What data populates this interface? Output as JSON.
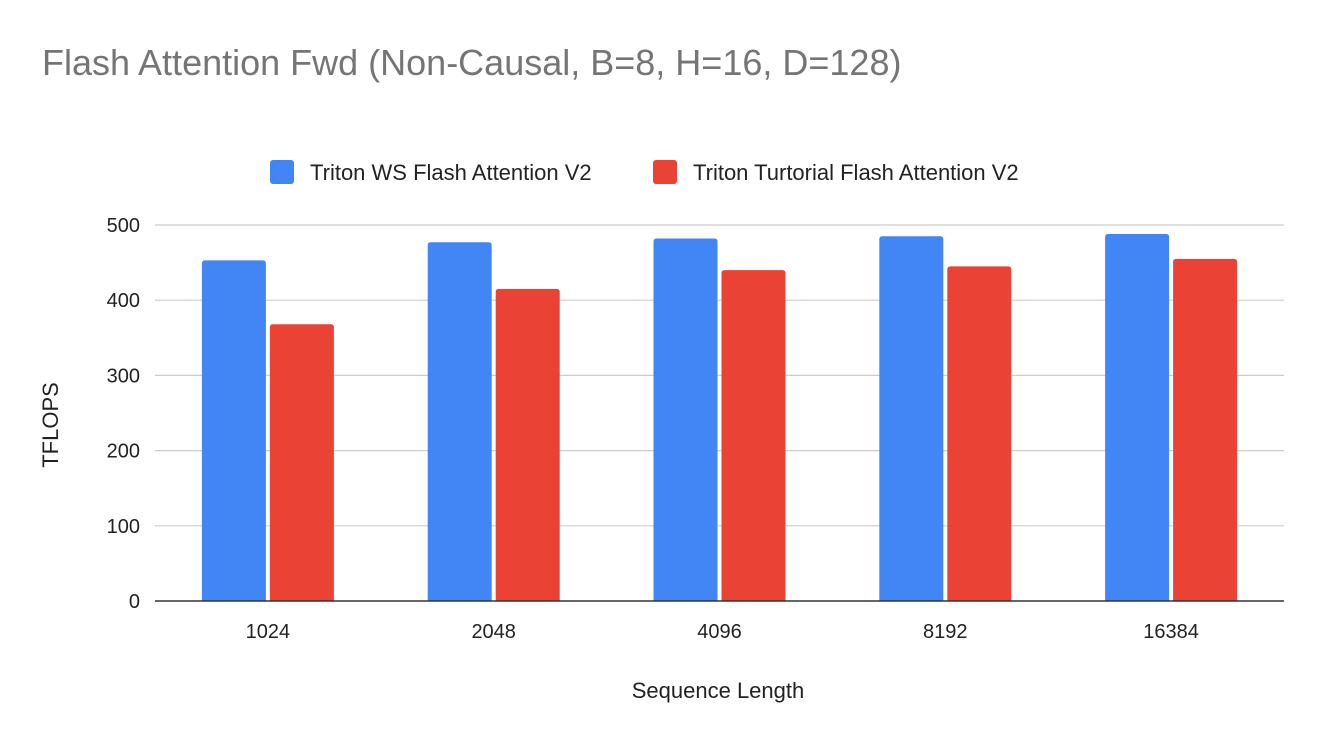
{
  "chart_data": {
    "type": "bar",
    "title": "Flash Attention Fwd (Non-Causal, B=8, H=16, D=128)",
    "xlabel": "Sequence Length",
    "ylabel": "TFLOPS",
    "categories": [
      "1024",
      "2048",
      "4096",
      "8192",
      "16384"
    ],
    "series": [
      {
        "name": "Triton WS Flash Attention V2",
        "color": "#4285f4",
        "values": [
          453,
          477,
          482,
          485,
          488
        ]
      },
      {
        "name": "Triton Turtorial Flash Attention V2",
        "color": "#ea4335",
        "values": [
          368,
          415,
          440,
          445,
          455
        ]
      }
    ],
    "ylim": [
      0,
      500
    ],
    "yticks": [
      "0",
      "100",
      "200",
      "300",
      "400",
      "500"
    ],
    "grid": true,
    "legend_position": "top"
  }
}
